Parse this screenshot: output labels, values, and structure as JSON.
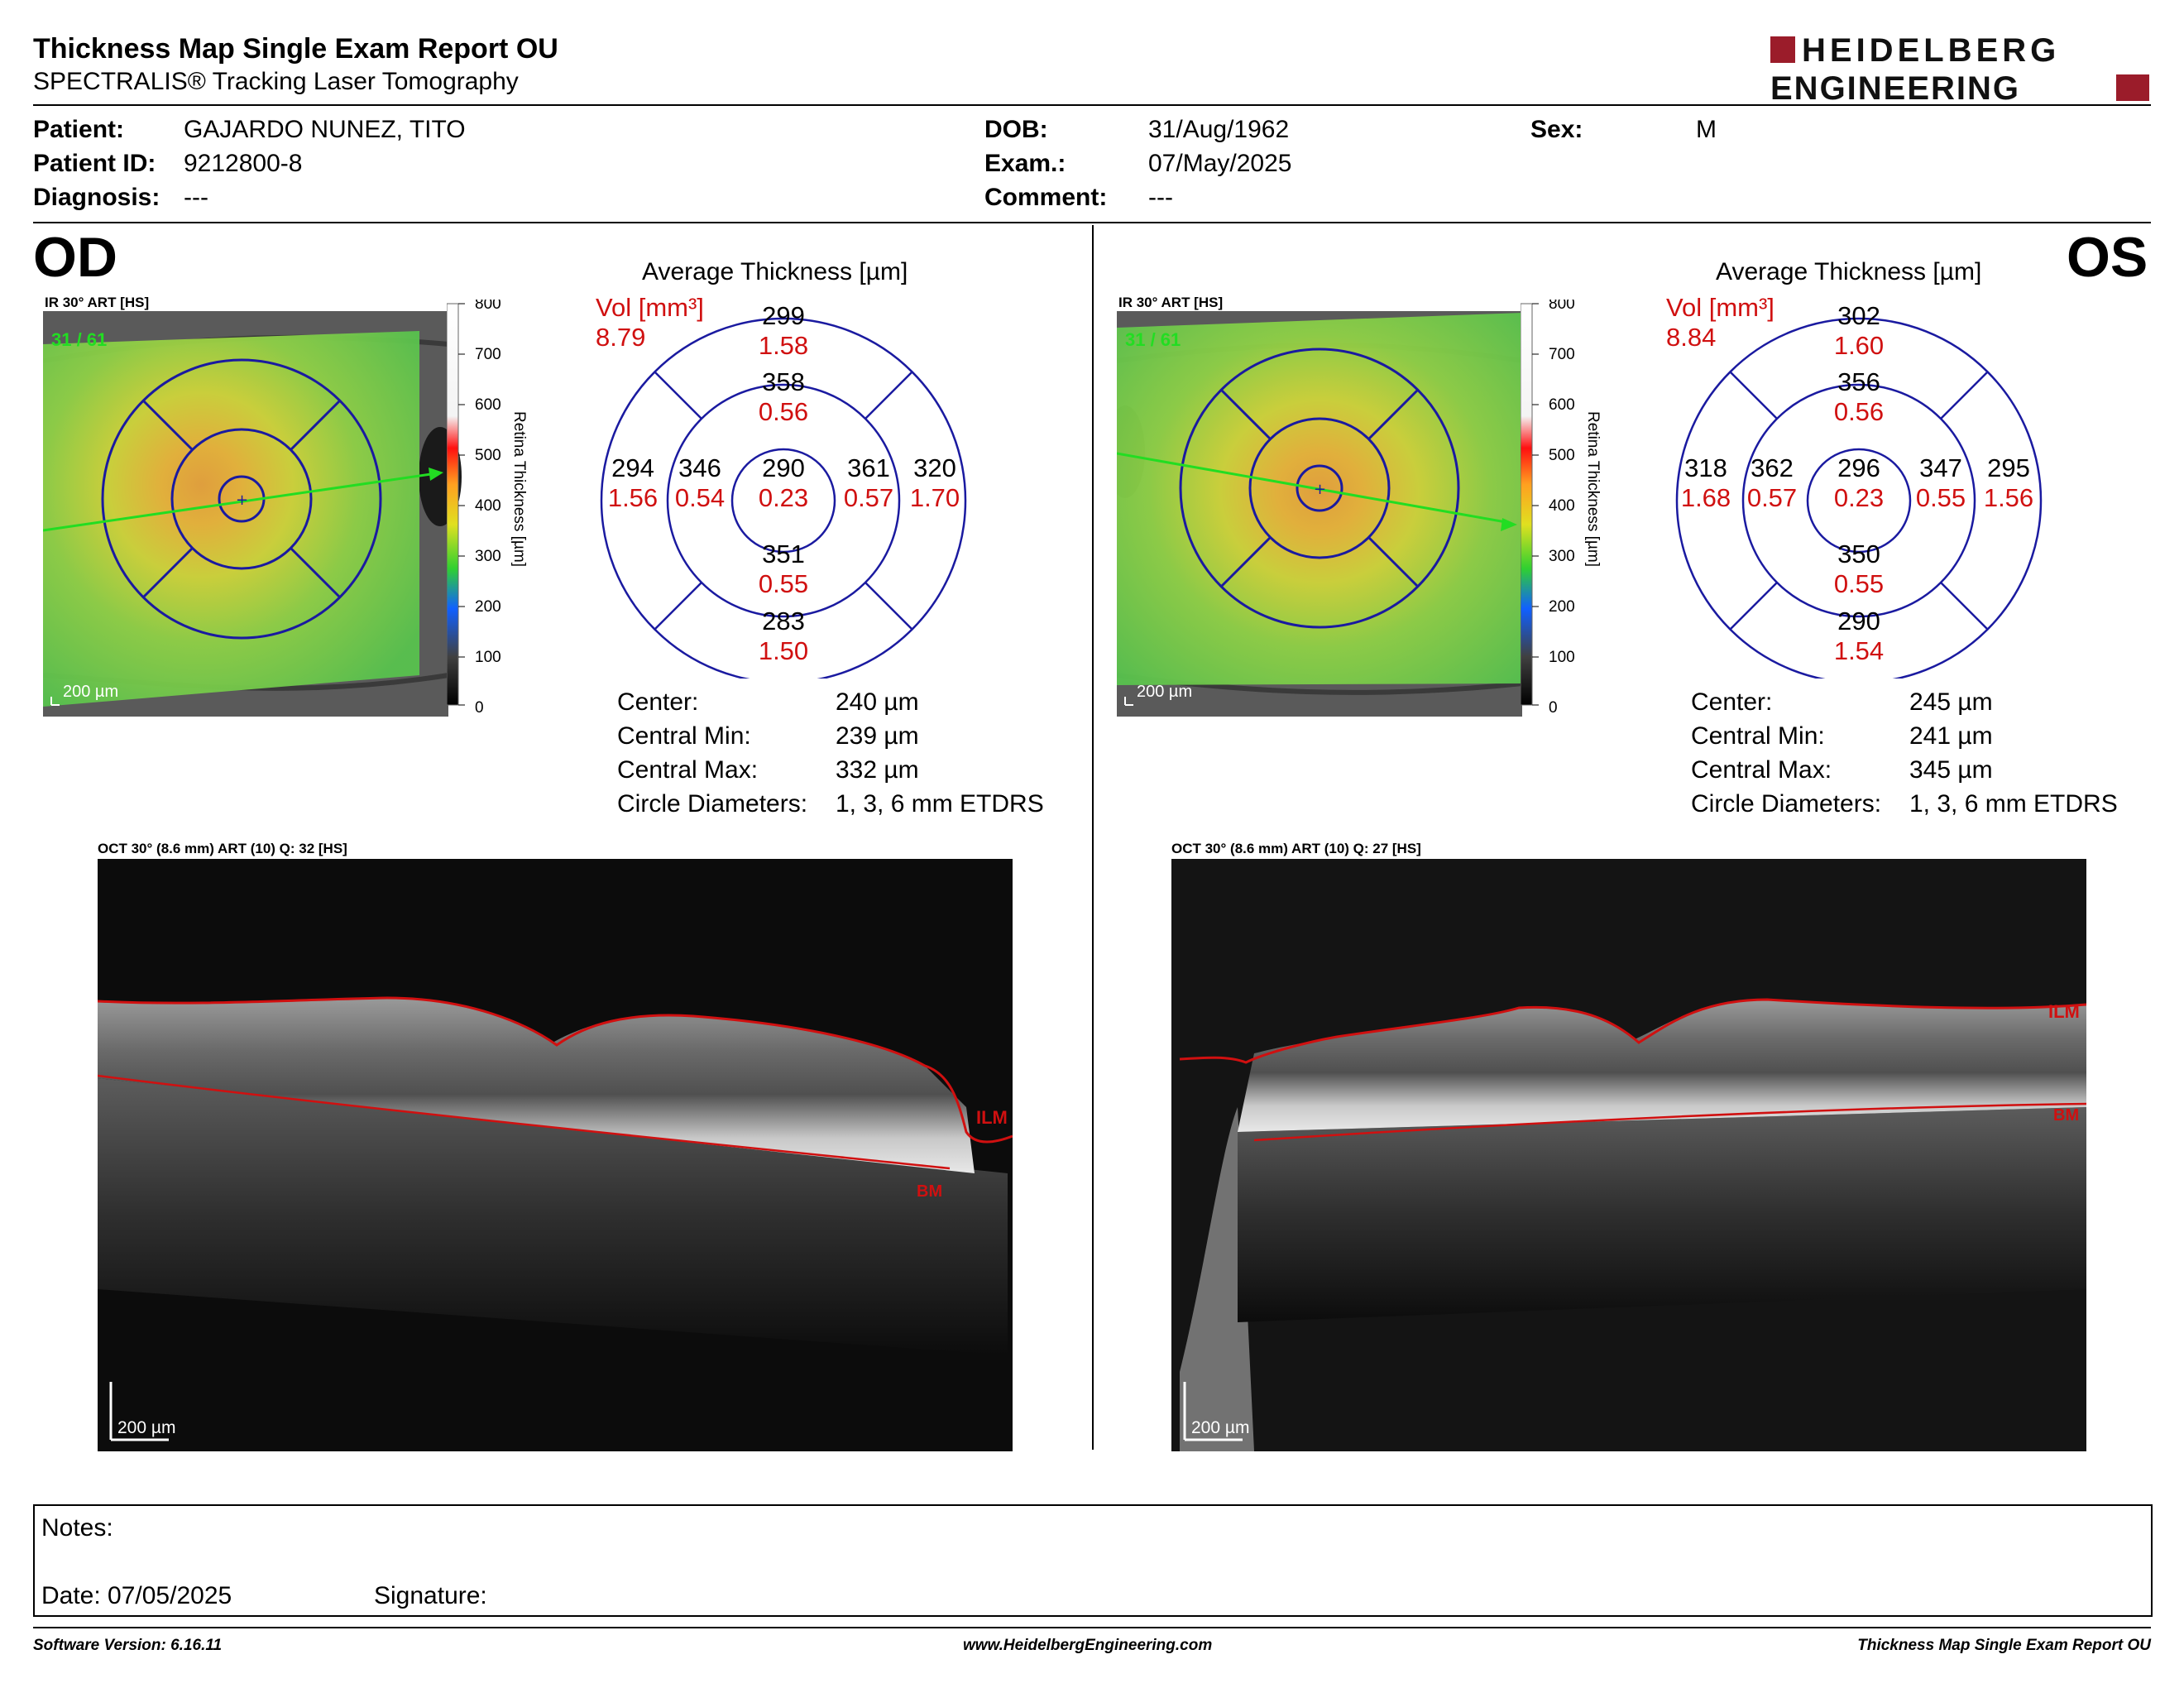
{
  "header": {
    "title": "Thickness Map Single Exam Report OU",
    "subtitle": "SPECTRALIS® Tracking Laser Tomography",
    "logo_line1": "HEIDELBERG",
    "logo_line2": "ENGINEERING",
    "logo_color": "#9b1c2a"
  },
  "patient": {
    "patient_label": "Patient:",
    "patient_value": "GAJARDO NUNEZ, TITO",
    "id_label": "Patient ID:",
    "id_value": "9212800-8",
    "diagnosis_label": "Diagnosis:",
    "diagnosis_value": "---",
    "dob_label": "DOB:",
    "dob_value": "31/Aug/1962",
    "exam_label": "Exam.:",
    "exam_value": "07/May/2025",
    "comment_label": "Comment:",
    "comment_value": "---",
    "sex_label": "Sex:",
    "sex_value": "M"
  },
  "od": {
    "eye": "OD",
    "ir_caption": "IR 30° ART [HS]",
    "art_count": "31 / 61",
    "scale_bar": "200 µm",
    "colorbar_ticks": [
      "800",
      "700",
      "600",
      "500",
      "400",
      "300",
      "200",
      "100",
      "0"
    ],
    "colorbar_label": "Retina Thickness [µm]",
    "avg_title": "Average Thickness [µm]",
    "vol_label": "Vol [mm³]",
    "vol_total": "8.79",
    "sectors": {
      "outer_top": [
        "299",
        "1.58"
      ],
      "inner_top": [
        "358",
        "0.56"
      ],
      "outer_left": [
        "294",
        "1.56"
      ],
      "inner_left": [
        "346",
        "0.54"
      ],
      "center": [
        "290",
        "0.23"
      ],
      "inner_right": [
        "361",
        "0.57"
      ],
      "outer_right": [
        "320",
        "1.70"
      ],
      "inner_bottom": [
        "351",
        "0.55"
      ],
      "outer_bottom": [
        "283",
        "1.50"
      ]
    },
    "stats": [
      [
        "Center:",
        "240 µm"
      ],
      [
        "Central Min:",
        "239 µm"
      ],
      [
        "Central Max:",
        "332 µm"
      ],
      [
        "Circle Diameters:",
        "1, 3, 6 mm ETDRS"
      ]
    ],
    "oct_caption": "OCT 30° (8.6 mm) ART (10) Q: 32 [HS]",
    "ilm": "ILM",
    "bm": "BM"
  },
  "os": {
    "eye": "OS",
    "ir_caption": "IR 30° ART [HS]",
    "art_count": "31 / 61",
    "scale_bar": "200 µm",
    "colorbar_ticks": [
      "800",
      "700",
      "600",
      "500",
      "400",
      "300",
      "200",
      "100",
      "0"
    ],
    "colorbar_label": "Retina Thickness [µm]",
    "avg_title": "Average Thickness [µm]",
    "vol_label": "Vol [mm³]",
    "vol_total": "8.84",
    "sectors": {
      "outer_top": [
        "302",
        "1.60"
      ],
      "inner_top": [
        "356",
        "0.56"
      ],
      "outer_left": [
        "318",
        "1.68"
      ],
      "inner_left": [
        "362",
        "0.57"
      ],
      "center": [
        "296",
        "0.23"
      ],
      "inner_right": [
        "347",
        "0.55"
      ],
      "outer_right": [
        "295",
        "1.56"
      ],
      "inner_bottom": [
        "350",
        "0.55"
      ],
      "outer_bottom": [
        "290",
        "1.54"
      ]
    },
    "stats": [
      [
        "Center:",
        "245 µm"
      ],
      [
        "Central Min:",
        "241 µm"
      ],
      [
        "Central Max:",
        "345 µm"
      ],
      [
        "Circle Diameters:",
        "1, 3, 6 mm ETDRS"
      ]
    ],
    "oct_caption": "OCT 30° (8.6 mm) ART (10) Q: 27 [HS]",
    "ilm": "ILM",
    "bm": "BM"
  },
  "notes": {
    "notes_label": "Notes:",
    "date_label": "Date: 07/05/2025",
    "signature_label": "Signature:"
  },
  "footer": {
    "software": "Software Version: 6.16.11",
    "website": "www.HeidelbergEngineering.com",
    "report": "Thickness Map Single Exam Report OU"
  },
  "colors": {
    "etdrs_grid": "#1a1aa0",
    "volume_text": "#d01010",
    "overlay_red": "#d01010",
    "cross_green": "#22dd22"
  }
}
